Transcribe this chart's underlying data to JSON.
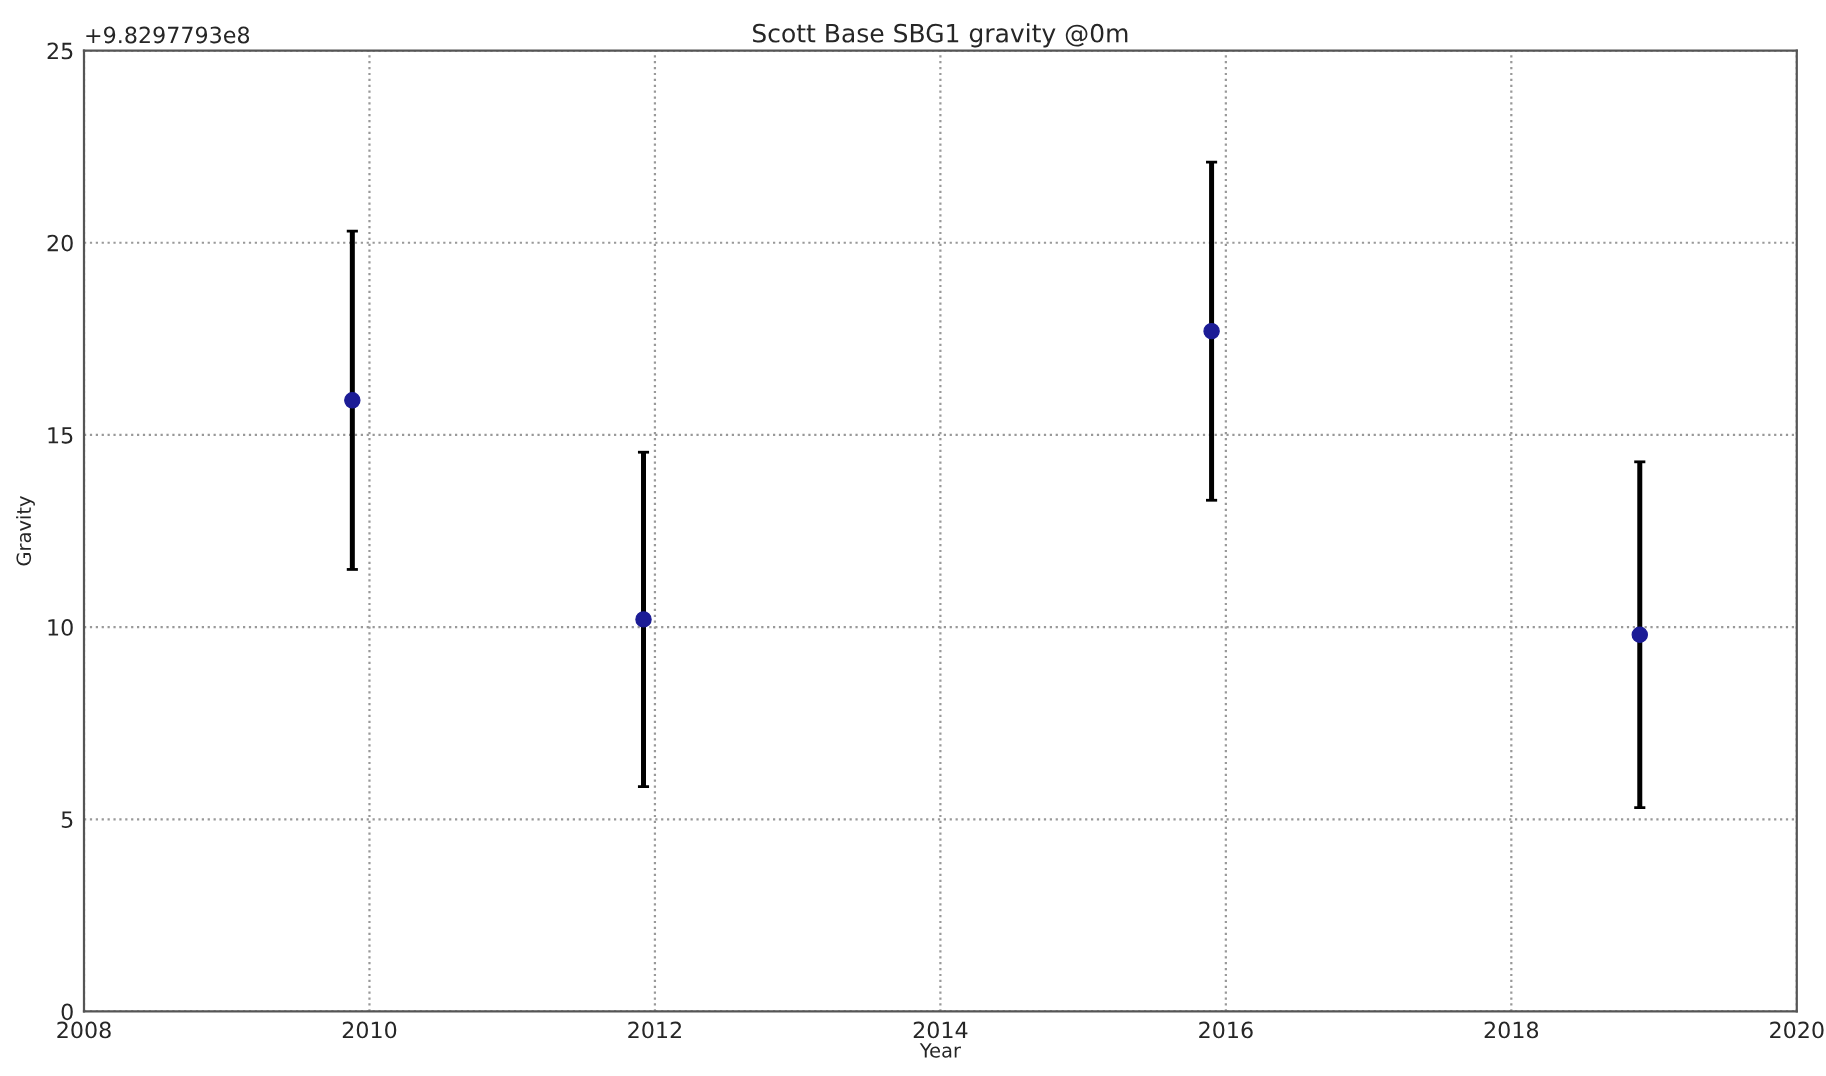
{
  "chart_data": {
    "type": "scatter",
    "title": "Scott Base SBG1 gravity @0m",
    "xlabel": "Year",
    "ylabel": "Gravity",
    "annotations": [
      "+9.8297793e8"
    ],
    "x": [
      2009.88,
      2011.92,
      2015.9,
      2018.9
    ],
    "series": [
      {
        "color": "#1c1c96",
        "values": [
          15.9,
          10.2,
          17.7,
          9.8
        ],
        "errors": [
          4.4,
          4.35,
          4.4,
          4.5
        ]
      }
    ],
    "xlim": [
      2008,
      2020
    ],
    "xticks": [
      2008,
      2010,
      2012,
      2014,
      2016,
      2018,
      2020
    ],
    "ylim": [
      0,
      25
    ],
    "yticks": [
      0,
      5,
      10,
      15,
      20,
      25
    ],
    "grid": true,
    "marker": "circle"
  }
}
